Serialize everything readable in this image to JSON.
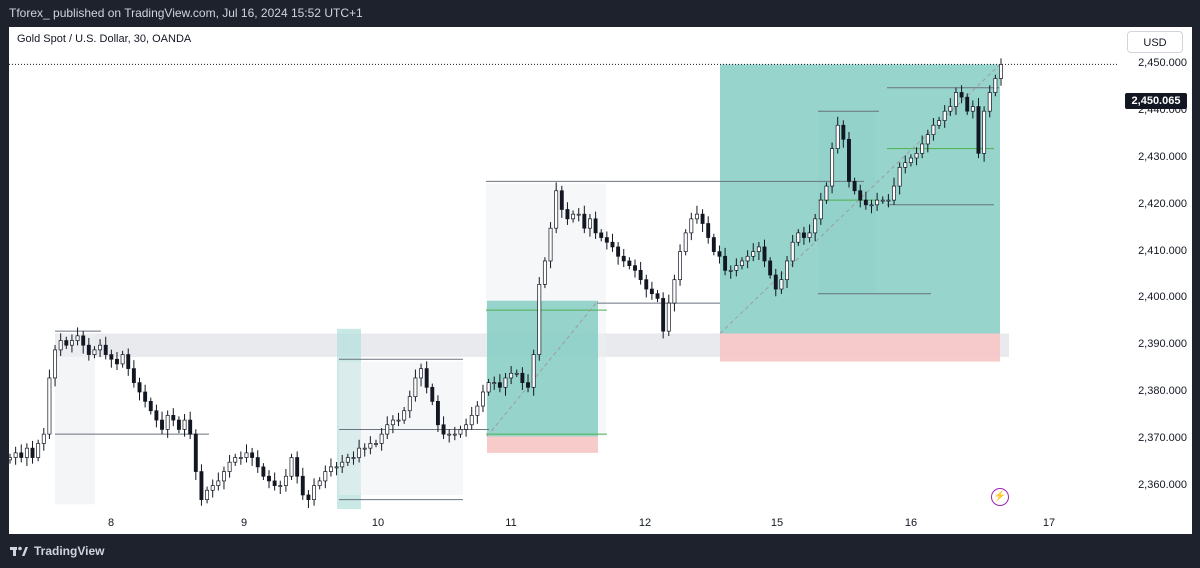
{
  "header": {
    "published": "Tforex_ published on TradingView.com, Jul 16, 2024 15:52 UTC+1"
  },
  "footer": {
    "brand": "TradingView"
  },
  "chart_data": {
    "type": "candlestick",
    "title": "Gold Spot / U.S. Dollar, 30, OANDA",
    "currency": "USD",
    "last_price": "2,450.065",
    "ylim": [
      2355,
      2455
    ],
    "y_ticks": [
      "2,360.000",
      "2,370.000",
      "2,380.000",
      "2,390.000",
      "2,400.000",
      "2,410.000",
      "2,420.000",
      "2,430.000",
      "2,440.000",
      "2,450.000"
    ],
    "x_ticks": [
      "8",
      "9",
      "10",
      "11",
      "12",
      "15",
      "16",
      "17"
    ],
    "series": [
      {
        "values": [
          2366,
          2367,
          2366,
          2368,
          2366,
          2369,
          2371,
          2383,
          2389,
          2391,
          2390,
          2391,
          2392,
          2390,
          2388,
          2389,
          2390,
          2388,
          2387,
          2386,
          2388,
          2385,
          2382,
          2380,
          2378,
          2376,
          2374,
          2372,
          2375,
          2374,
          2372,
          2374,
          2371,
          2363,
          2357,
          2359,
          2360,
          2361,
          2363,
          2365,
          2366,
          2366,
          2367,
          2366,
          2364,
          2362,
          2361,
          2360,
          2360,
          2362,
          2366,
          2362,
          2358,
          2357,
          2360,
          2361,
          2363,
          2364,
          2364,
          2365,
          2366,
          2366,
          2368,
          2368,
          2369,
          2369,
          2371,
          2373,
          2374,
          2374,
          2376,
          2379,
          2383,
          2385,
          2381,
          2378,
          2373,
          2371,
          2371,
          2371,
          2372,
          2373,
          2375,
          2377,
          2380,
          2382,
          2382,
          2381,
          2383,
          2384,
          2384,
          2382,
          2381,
          2388,
          2403,
          2408,
          2415,
          2423,
          2419,
          2417,
          2418,
          2418,
          2415,
          2417,
          2414,
          2413,
          2412,
          2411,
          2409,
          2408,
          2407,
          2406,
          2404,
          2402,
          2401,
          2400,
          2393,
          2399,
          2404,
          2410,
          2414,
          2417,
          2418,
          2416,
          2413,
          2410,
          2409,
          2406,
          2406,
          2407,
          2408,
          2409,
          2410,
          2411,
          2408,
          2405,
          2402,
          2404,
          2408,
          2412,
          2414,
          2413,
          2414,
          2417,
          2421,
          2424,
          2432,
          2437,
          2434,
          2425,
          2423,
          2421,
          2420,
          2420,
          2421,
          2421,
          2421,
          2424,
          2428,
          2429,
          2430,
          2431,
          2433,
          2435,
          2437,
          2438,
          2440,
          2441,
          2444,
          2443,
          2440,
          2441,
          2431,
          2440,
          2444,
          2447,
          2450
        ]
      }
    ],
    "zones": [
      {
        "type": "demand",
        "y": [
          2387.5,
          2392.5
        ]
      },
      {
        "type": "demand",
        "y": [
          2387.0,
          2392.0
        ]
      },
      {
        "type": "long",
        "entry": 2392.5,
        "target": 2450.0,
        "stop": 2386.5
      },
      {
        "type": "long",
        "entry": 2370.5,
        "target": 2399.5,
        "stop": 2367.0
      }
    ],
    "colors": {
      "up": "#131722",
      "target": "#84cdc3",
      "stop": "#f7c5c5",
      "zone": "#e0e3e8",
      "level": "#00897b"
    }
  }
}
